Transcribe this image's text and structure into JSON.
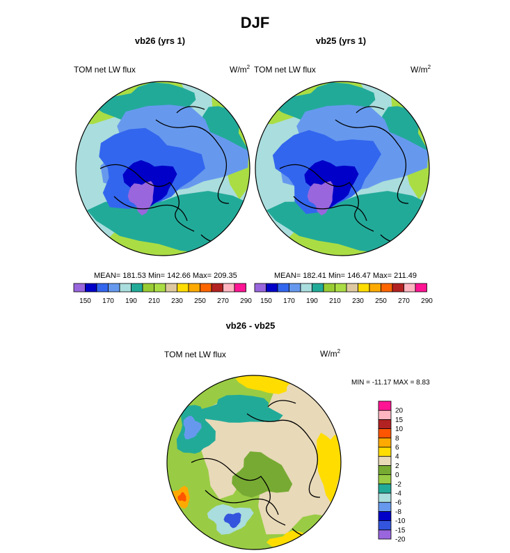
{
  "title": "DJF",
  "colors": {
    "abs_palette": [
      "#9966dd",
      "#0000c8",
      "#3366ee",
      "#6699ee",
      "#aadddd",
      "#22aa99",
      "#99cc33",
      "#aadd44",
      "#ddc8a0",
      "#ffdd00",
      "#ffaa00",
      "#ff6600",
      "#b22222",
      "#ffb6c1",
      "#ff1493"
    ],
    "diff_palette": [
      "#9966dd",
      "#3355dd",
      "#0000c8",
      "#6699ee",
      "#aadddd",
      "#22aa99",
      "#99cc44",
      "#77aa33",
      "#e8d9b8",
      "#ffdd00",
      "#ffaa00",
      "#ff5500",
      "#b22222",
      "#ffb6c1",
      "#ff1493"
    ]
  },
  "panels": [
    {
      "subtitle": "vb26 (yrs 1)",
      "field": "TOM net LW flux",
      "units_base": "W/m",
      "units_exp": "2",
      "stats": "MEAN= 181.53  Min= 142.66  Max= 209.35",
      "chart_data": {
        "type": "heatmap",
        "projection": "north-polar-stereographic",
        "variable": "TOM net LW flux",
        "units": "W/m2",
        "mean": 181.53,
        "min": 142.66,
        "max": 209.35,
        "colorbar_levels": [
          150,
          160,
          170,
          180,
          190,
          200,
          210,
          220,
          230,
          240,
          250,
          260,
          270,
          280,
          290
        ],
        "colorbar_tick_labels": [
          "150",
          "170",
          "190",
          "210",
          "230",
          "250",
          "270",
          "290"
        ]
      }
    },
    {
      "subtitle": "vb25 (yrs 1)",
      "field": "TOM net LW flux",
      "units_base": "W/m",
      "units_exp": "2",
      "stats": "MEAN= 182.41  Min= 146.47  Max= 211.49",
      "chart_data": {
        "type": "heatmap",
        "projection": "north-polar-stereographic",
        "variable": "TOM net LW flux",
        "units": "W/m2",
        "mean": 182.41,
        "min": 146.47,
        "max": 211.49,
        "colorbar_levels": [
          150,
          160,
          170,
          180,
          190,
          200,
          210,
          220,
          230,
          240,
          250,
          260,
          270,
          280,
          290
        ],
        "colorbar_tick_labels": [
          "150",
          "170",
          "190",
          "210",
          "230",
          "250",
          "270",
          "290"
        ]
      }
    }
  ],
  "diff": {
    "subtitle": "vb26 - vb25",
    "field": "TOM net LW flux",
    "units_base": "W/m",
    "units_exp": "2",
    "stats": "MIN = -11.17 MAX =   8.83",
    "chart_data": {
      "type": "heatmap",
      "projection": "north-polar-stereographic",
      "variable": "TOM net LW flux difference",
      "units": "W/m2",
      "min": -11.17,
      "max": 8.83,
      "colorbar_levels": [
        20,
        15,
        10,
        8,
        6,
        4,
        2,
        0,
        -2,
        -4,
        -6,
        -8,
        -10,
        -15,
        -20
      ],
      "colorbar_tick_labels": [
        "20",
        "15",
        "10",
        "8",
        "6",
        "4",
        "2",
        "0",
        "-2",
        "-4",
        "-6",
        "-8",
        "-10",
        "-15",
        "-20"
      ]
    }
  }
}
